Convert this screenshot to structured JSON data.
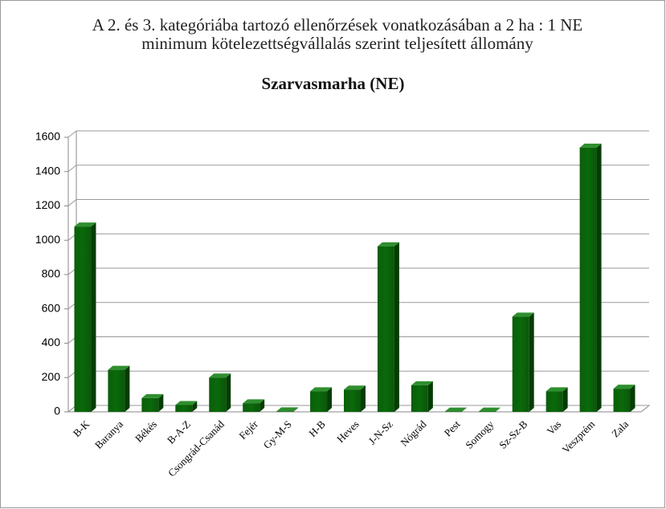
{
  "chart_data": {
    "type": "bar3d",
    "title": "A 2. és 3. kategóriába tartozó ellenőrzések vonatkozásában a 2 ha : 1 NE  minimum kötelezettségvállalás szerint teljesített állomány",
    "subtitle": "Szarvasmarha (NE)",
    "categories": [
      "B-K",
      "Baranya",
      "Békés",
      "B-A-Z",
      "Csongrád-Csanád",
      "Fejér",
      "Gy-M-S",
      "H-B",
      "Heves",
      "J-N-Sz",
      "Nógrád",
      "Pest",
      "Somogy",
      "Sz-Sz-B",
      "Vas",
      "Veszprém",
      "Zala"
    ],
    "values": [
      1080,
      245,
      80,
      40,
      200,
      50,
      3,
      120,
      130,
      965,
      155,
      2,
      2,
      555,
      120,
      1540,
      135
    ],
    "color": "#0a6a0a",
    "ylim": [
      0,
      1600
    ],
    "yticks": [
      0,
      200,
      400,
      600,
      800,
      1000,
      1200,
      1400,
      1600
    ],
    "grid": true
  }
}
